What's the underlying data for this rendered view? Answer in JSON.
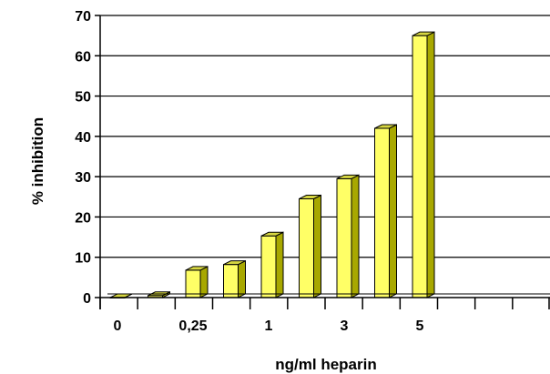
{
  "chart_data": {
    "type": "bar",
    "title": "",
    "xlabel": "ng/ml heparin",
    "ylabel": "% inhibition",
    "ylim": [
      0,
      70
    ],
    "yticks": [
      0,
      10,
      20,
      30,
      40,
      50,
      60,
      70
    ],
    "grid": true,
    "legend": "none",
    "bar_style": "3d",
    "bar_color": "#FFFF66",
    "bar_side_color": "#A8A800",
    "bar_top_color": "#D6D640",
    "xtick_labels": [
      "0",
      "0,25",
      "1",
      "3",
      "5"
    ],
    "categories": [
      "0",
      "",
      "0,25",
      "",
      "1",
      "",
      "3",
      "",
      "5"
    ],
    "values": [
      0,
      0.5,
      6.8,
      8.2,
      15.3,
      24.5,
      29.5,
      42,
      65
    ]
  }
}
